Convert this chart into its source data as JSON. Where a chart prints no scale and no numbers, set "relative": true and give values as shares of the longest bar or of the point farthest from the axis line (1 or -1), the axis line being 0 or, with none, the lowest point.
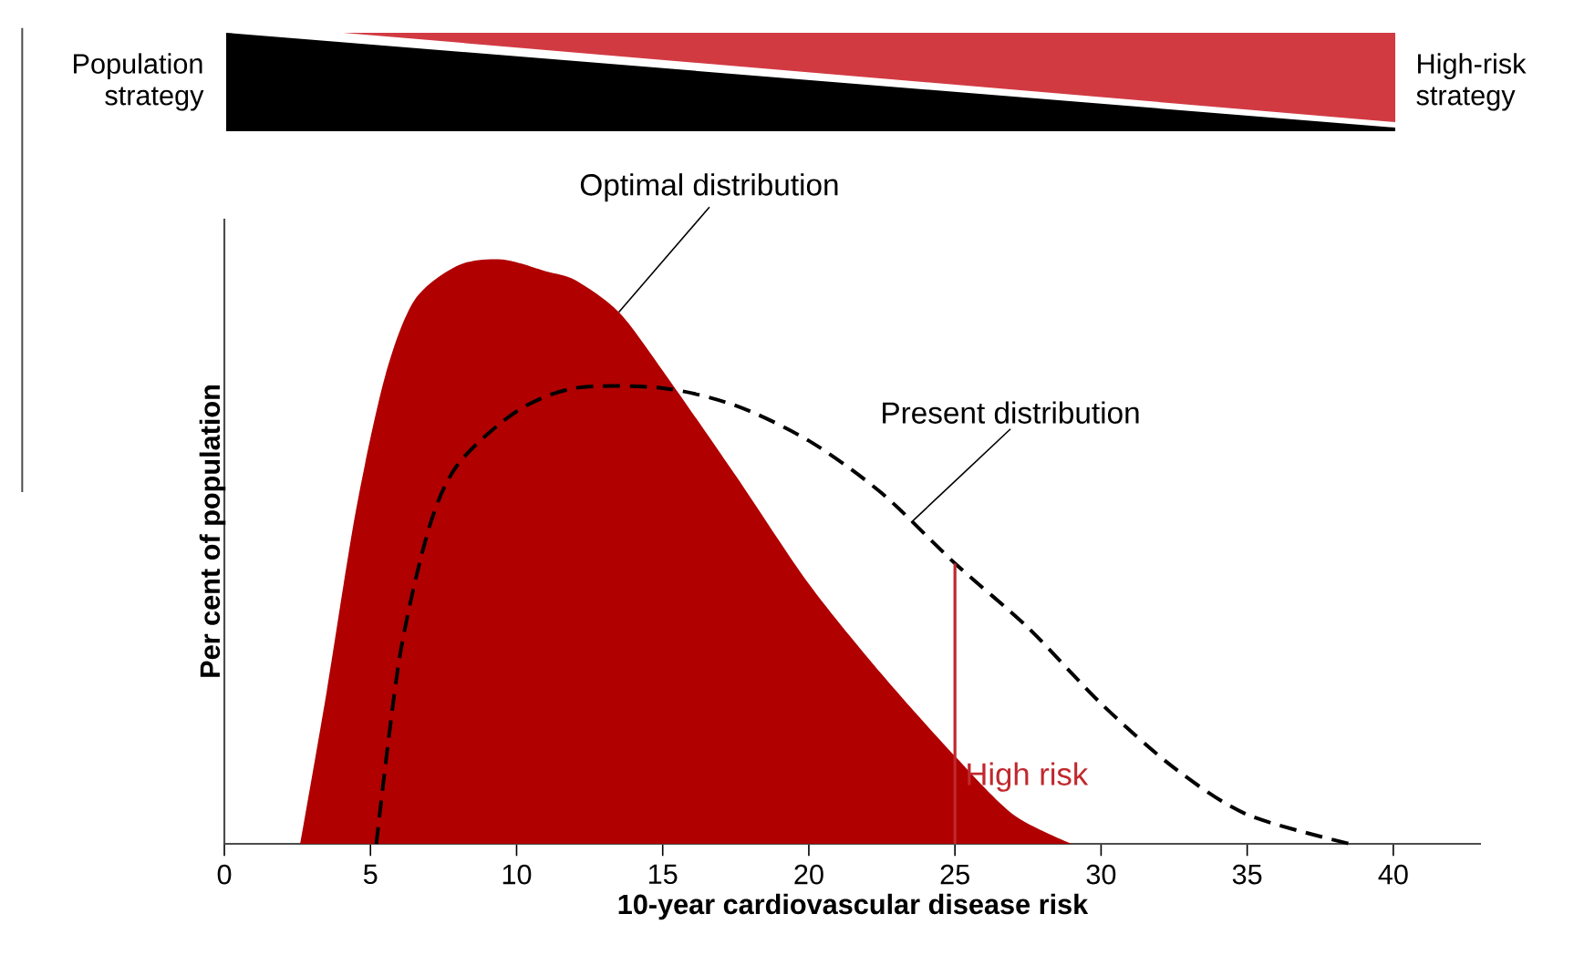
{
  "chart_data": {
    "type": "area",
    "xlabel": "10-year cardiovascular disease risk",
    "ylabel": "Per cent of population",
    "relative": true,
    "xlim": [
      0,
      43
    ],
    "xticks": [
      0,
      5,
      10,
      15,
      20,
      25,
      30,
      35,
      40
    ],
    "series": [
      {
        "color": "#b00000",
        "x": [
          2.6,
          3.5,
          4.5,
          5.5,
          6.5,
          8,
          9.5,
          11,
          12,
          13.5,
          15,
          17.5,
          20,
          22.5,
          25,
          27,
          29
        ],
        "values": [
          0,
          0.26,
          0.57,
          0.8,
          0.93,
          0.99,
          1.0,
          0.98,
          0.965,
          0.91,
          0.81,
          0.63,
          0.445,
          0.29,
          0.15,
          0.05,
          0
        ]
      },
      {
        "type": "line",
        "color": "#000000",
        "line_style": "dashed",
        "x": [
          5.2,
          6,
          7,
          8,
          10,
          12,
          15,
          17.5,
          20,
          22.5,
          25,
          27.5,
          30,
          32.5,
          35,
          38.5
        ],
        "values": [
          0,
          0.32,
          0.54,
          0.65,
          0.74,
          0.78,
          0.78,
          0.75,
          0.69,
          0.6,
          0.48,
          0.37,
          0.24,
          0.13,
          0.05,
          0
        ]
      }
    ],
    "ref_lines": [
      {
        "axis": "x",
        "value": 25,
        "label": "High risk",
        "color": "#c0282d"
      }
    ],
    "annotations": [
      {
        "text": "Optimal distribution",
        "x": 13.5,
        "y": 0.91
      },
      {
        "text": "Present distribution",
        "x": 23.5,
        "y": 0.55
      },
      "Population strategy",
      "High-risk strategy"
    ]
  }
}
